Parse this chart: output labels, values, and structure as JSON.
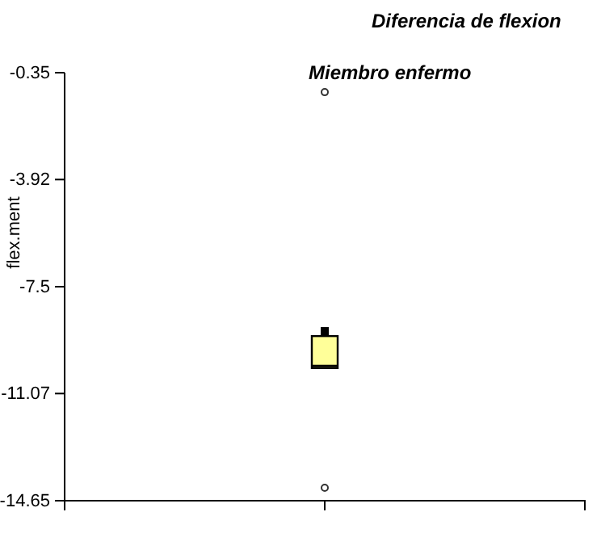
{
  "chart_data": {
    "type": "box",
    "title": "Diferencia de flexion",
    "subtitle": "Miembro enfermo",
    "ylabel": "flex.ment",
    "categories": [
      null
    ],
    "boxes": [
      {
        "low": -10.22,
        "q1": -10.22,
        "median": -10.15,
        "q3": -9.15,
        "high": -8.85,
        "outliers": [
          -1.0,
          -14.22
        ]
      }
    ],
    "color": "#ffff99",
    "ylim": [
      -14.65,
      -0.35
    ],
    "yticks": [
      -14.65,
      -11.07,
      -7.5,
      -3.92,
      -0.35
    ],
    "grid": false
  }
}
